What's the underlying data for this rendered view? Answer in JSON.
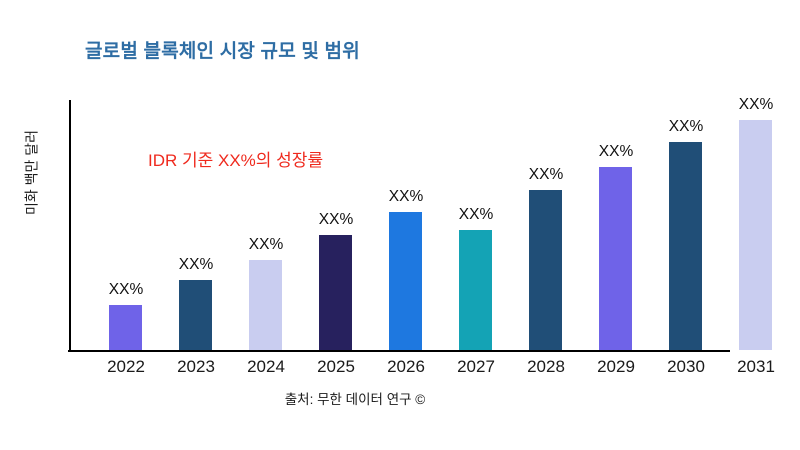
{
  "header": {
    "title": "글로벌 블록체인 시장 규모 및 범위",
    "title_color": "#2e6da4"
  },
  "chart_data": {
    "type": "bar",
    "title": "글로벌 블록체인 시장 규모 및 범위",
    "categories": [
      "2022",
      "2023",
      "2024",
      "2025",
      "2026",
      "2027",
      "2028",
      "2029",
      "2030",
      "2031"
    ],
    "values": [
      18,
      28,
      36,
      46,
      55,
      48,
      64,
      73,
      83,
      92
    ],
    "bar_labels": [
      "XX%",
      "XX%",
      "XX%",
      "XX%",
      "XX%",
      "XX%",
      "XX%",
      "XX%",
      "XX%",
      "XX%"
    ],
    "bar_colors": [
      "#6f63e8",
      "#204e77",
      "#c9cdf0",
      "#27215e",
      "#1e78e0",
      "#14a3b5",
      "#204e77",
      "#6f63e8",
      "#204e77",
      "#c9cdf0"
    ],
    "xlabel": "",
    "ylabel": "미화 백만 달러",
    "annotation": "IDR 기준 XX%의 성장률",
    "annotation_color": "#ef2a1e",
    "ylim": [
      0,
      100
    ],
    "grid": false,
    "legend": false,
    "axis_color": "#000000"
  },
  "footer": {
    "source": "출처: 무한 데이터 연구 ©"
  }
}
